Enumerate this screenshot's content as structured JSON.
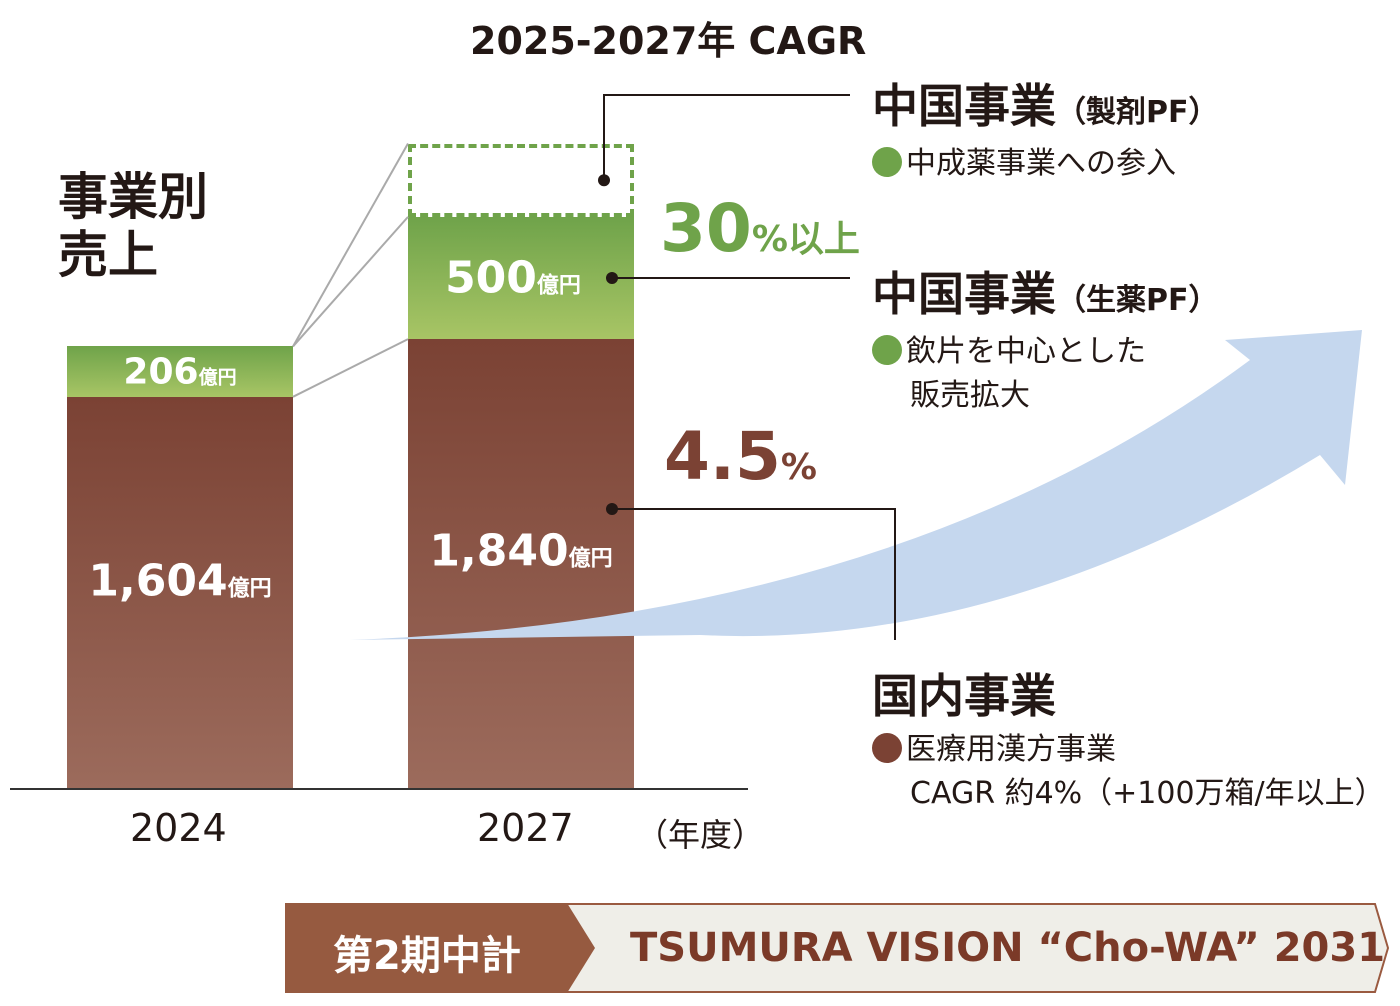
{
  "chart_data": {
    "type": "bar",
    "stacked": true,
    "title": "事業別売上",
    "cagr_title": "2025-2027年 CAGR",
    "categories": [
      "2024",
      "2027"
    ],
    "unit": "億円",
    "xlabel": "（年度）",
    "series": [
      {
        "name": "国内事業",
        "values": [
          1604,
          1840
        ],
        "labels": [
          "1,604",
          "1,840"
        ],
        "color": "#7b4234"
      },
      {
        "name": "中国事業（生薬PF）",
        "values": [
          206,
          500
        ],
        "labels": [
          "206",
          "500"
        ],
        "color": "#6fa34a"
      },
      {
        "name": "中国事業（製剤PF）",
        "values": [
          0,
          300
        ],
        "dashed": true,
        "color": "#6fa34a"
      }
    ],
    "cagr": [
      {
        "label": "30",
        "suffix": "%以上",
        "color": "#6fa34a"
      },
      {
        "label": "4.5",
        "suffix": "%",
        "color": "#7b4234"
      }
    ]
  },
  "legend": [
    {
      "title": "中国事業",
      "sub": "（製剤PF）",
      "bullets": [
        "中成薬事業への参入"
      ],
      "color": "#6fa34a"
    },
    {
      "title": "中国事業",
      "sub": "（生薬PF）",
      "bullets": [
        "飲片を中心とした",
        "販売拡大"
      ],
      "color": "#6fa34a"
    },
    {
      "title": "国内事業",
      "sub": "",
      "bullets": [
        "医療用漢方事業",
        "CAGR 約4%（+100万箱/年以上）"
      ],
      "color": "#7b4234"
    }
  ],
  "banner": {
    "left": "第2期中計",
    "right": "TSUMURA VISION “Cho-WA” 2031"
  }
}
